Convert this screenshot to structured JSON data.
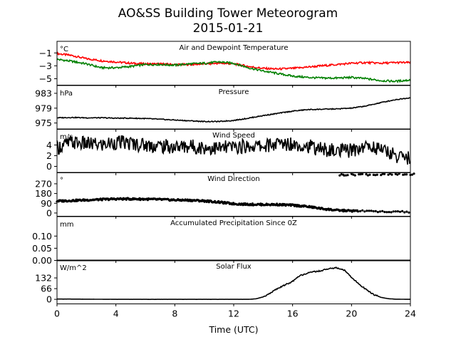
{
  "figure": {
    "title_line1": "AO&SS Building Tower Meteorogram",
    "title_line2": "2015-01-21",
    "xlabel": "Time (UTC)"
  },
  "chart_data": [
    {
      "type": "line",
      "title": "Air and Dewpoint Temperature",
      "unit": "°C",
      "xlim": [
        0,
        24
      ],
      "ylim": [
        -6,
        0.8
      ],
      "yticks": [
        -5,
        -3,
        -1
      ],
      "ytick_labels": [
        "−5",
        "−3",
        "−1"
      ],
      "x": [
        0,
        1,
        2,
        3,
        4,
        5,
        6,
        7,
        8,
        9,
        10,
        11,
        12,
        13,
        14,
        15,
        16,
        17,
        18,
        19,
        20,
        21,
        22,
        23,
        24
      ],
      "series": [
        {
          "name": "air",
          "color": "#ff0000",
          "values": [
            -1.1,
            -1.4,
            -1.9,
            -2.2,
            -2.4,
            -2.6,
            -2.7,
            -2.7,
            -2.8,
            -2.8,
            -2.7,
            -2.6,
            -2.7,
            -3.1,
            -3.4,
            -3.5,
            -3.4,
            -3.2,
            -3.0,
            -2.8,
            -2.6,
            -2.5,
            -2.6,
            -2.5,
            -2.5
          ]
        },
        {
          "name": "dewpoint",
          "color": "#008000",
          "values": [
            -2.0,
            -2.3,
            -2.7,
            -3.3,
            -3.3,
            -3.1,
            -2.8,
            -2.8,
            -2.9,
            -2.7,
            -2.6,
            -2.4,
            -2.6,
            -3.3,
            -3.8,
            -4.2,
            -4.6,
            -4.8,
            -4.9,
            -4.9,
            -4.8,
            -5.0,
            -5.3,
            -5.4,
            -5.2
          ]
        }
      ]
    },
    {
      "type": "line",
      "title": "Pressure",
      "unit": "hPa",
      "xlim": [
        0,
        24
      ],
      "ylim": [
        973.3,
        985.1
      ],
      "yticks": [
        975,
        979,
        983
      ],
      "ytick_labels": [
        "975",
        "979",
        "983"
      ],
      "x": [
        0,
        1,
        2,
        3,
        4,
        5,
        6,
        7,
        8,
        9,
        10,
        11,
        12,
        13,
        14,
        15,
        16,
        17,
        18,
        19,
        20,
        21,
        22,
        23,
        24
      ],
      "series": [
        {
          "name": "pressure",
          "color": "#000000",
          "values": [
            976.4,
            976.5,
            976.4,
            976.4,
            976.3,
            976.3,
            976.2,
            976.0,
            975.8,
            975.6,
            975.4,
            975.4,
            975.7,
            976.3,
            977.0,
            977.6,
            978.2,
            978.6,
            978.7,
            978.8,
            979.0,
            979.6,
            980.5,
            981.3,
            981.8
          ]
        }
      ]
    },
    {
      "type": "line",
      "title": "Wind Speed",
      "unit": "m/s",
      "xlim": [
        0,
        24
      ],
      "ylim": [
        -1.2,
        7.0
      ],
      "yticks": [
        0,
        2,
        4
      ],
      "ytick_labels": [
        "0",
        "2",
        "4"
      ],
      "x": [
        0,
        1,
        2,
        3,
        4,
        5,
        6,
        7,
        8,
        9,
        10,
        11,
        12,
        13,
        14,
        15,
        16,
        17,
        18,
        19,
        20,
        21,
        22,
        23,
        24
      ],
      "series": [
        {
          "name": "wind speed",
          "color": "#000000",
          "values": [
            3.5,
            4.5,
            4.2,
            4.0,
            4.5,
            4.3,
            4.0,
            3.8,
            3.6,
            3.8,
            3.5,
            3.4,
            3.6,
            3.8,
            3.8,
            4.2,
            4.3,
            3.8,
            3.2,
            2.8,
            3.0,
            3.8,
            3.3,
            2.0,
            1.5
          ]
        }
      ]
    },
    {
      "type": "scatter",
      "title": "Wind Direction",
      "unit": "°",
      "xlim": [
        0,
        24
      ],
      "ylim": [
        -30,
        375
      ],
      "yticks": [
        0,
        90,
        180,
        270
      ],
      "ytick_labels": [
        "0",
        "90",
        "180",
        "270"
      ],
      "x": [
        0,
        1,
        2,
        3,
        4,
        5,
        6,
        7,
        8,
        9,
        10,
        11,
        12,
        13,
        14,
        15,
        16,
        17,
        18,
        19,
        20,
        21,
        22,
        23,
        24
      ],
      "series": [
        {
          "name": "wind direction",
          "color": "#000000",
          "values": [
            110,
            115,
            120,
            125,
            130,
            130,
            128,
            125,
            120,
            118,
            112,
            100,
            85,
            80,
            78,
            78,
            72,
            60,
            40,
            25,
            20,
            15,
            12,
            10,
            10
          ]
        },
        {
          "name": "wind direction (northerly)",
          "color": "#000000",
          "x": [
            19.2,
            19.5,
            20.0,
            20.5,
            21.0,
            21.5,
            22.0,
            22.5,
            23.0,
            23.5,
            24.0
          ],
          "values": [
            352,
            354,
            355,
            357,
            356,
            355,
            354,
            355,
            356,
            355,
            356
          ]
        }
      ]
    },
    {
      "type": "line",
      "title": "Accumulated Precipitation Since 0Z",
      "unit": "mm",
      "xlim": [
        0,
        24
      ],
      "ylim": [
        0,
        0.18
      ],
      "yticks": [
        0.0,
        0.05,
        0.1
      ],
      "ytick_labels": [
        "0.00",
        "0.05",
        "0.10"
      ],
      "x": [
        0,
        24
      ],
      "series": [
        {
          "name": "precipitation",
          "color": "#000000",
          "values": [
            0.0,
            0.0
          ]
        }
      ]
    },
    {
      "type": "line",
      "title": "Solar Flux",
      "unit": "W/m^2",
      "xlim": [
        0,
        24
      ],
      "ylim": [
        -28,
        242
      ],
      "yticks": [
        0,
        66,
        132
      ],
      "ytick_labels": [
        "0",
        "66",
        "132"
      ],
      "xticks": [
        0,
        4,
        8,
        12,
        16,
        20,
        24
      ],
      "xtick_labels": [
        "0",
        "4",
        "8",
        "12",
        "16",
        "20",
        "24"
      ],
      "x": [
        0,
        2,
        4,
        6,
        8,
        10,
        12,
        13,
        13.5,
        14,
        14.5,
        15,
        15.5,
        16,
        16.5,
        17,
        17.5,
        18,
        18.5,
        19,
        19.5,
        20,
        20.5,
        21,
        21.5,
        22,
        22.5,
        23,
        24
      ],
      "series": [
        {
          "name": "solar flux",
          "color": "#000000",
          "values": [
            2,
            1,
            0,
            0,
            0,
            0,
            0,
            0,
            3,
            15,
            40,
            68,
            90,
            110,
            145,
            162,
            170,
            178,
            190,
            194,
            180,
            135,
            95,
            60,
            30,
            12,
            4,
            1,
            0
          ]
        }
      ]
    }
  ]
}
